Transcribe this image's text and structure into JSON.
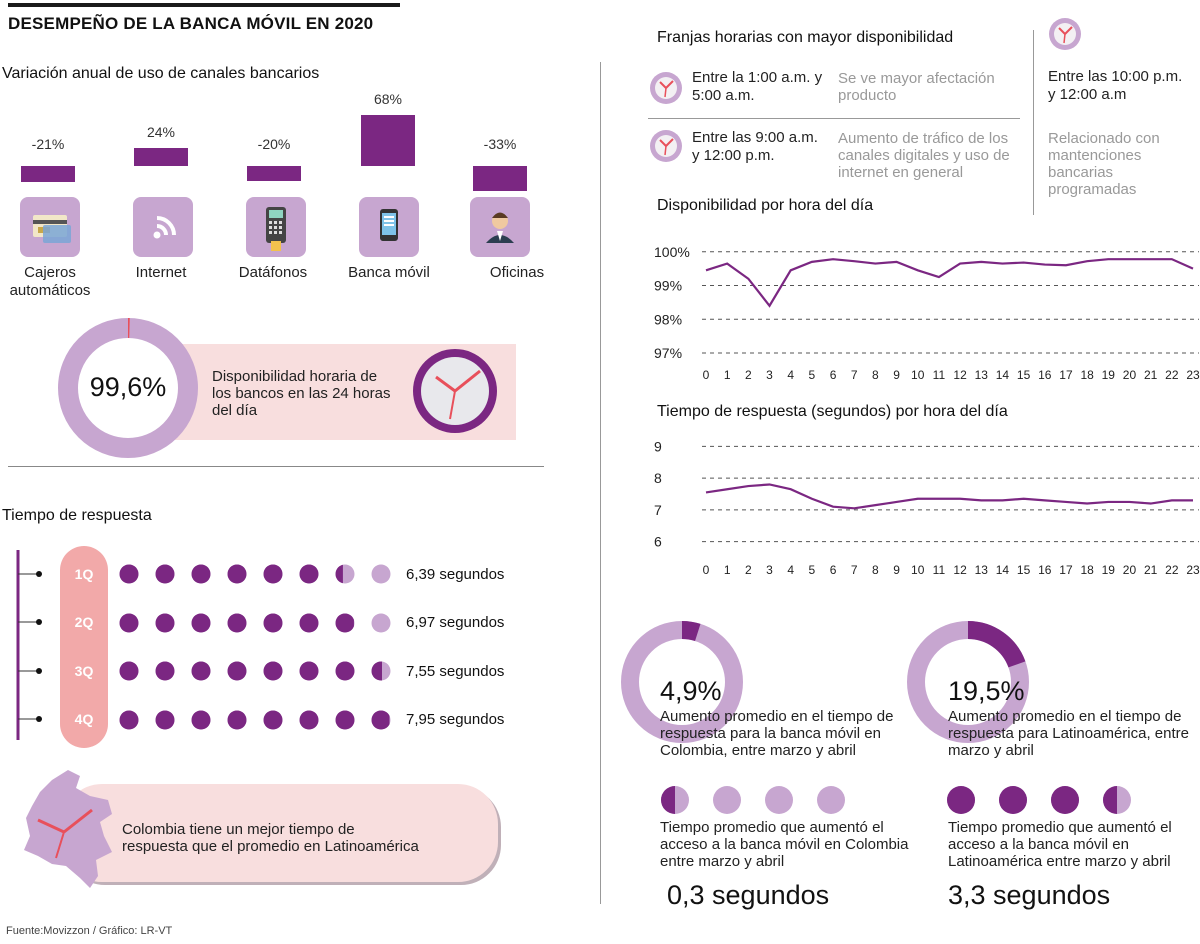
{
  "title": "DESEMPEÑO DE LA BANCA MÓVIL EN 2020",
  "colors": {
    "purple": "#7b2782",
    "lilac": "#c7a6d0",
    "pink": "#f8dede",
    "salmon": "#f2a9a9",
    "red": "#e8505b"
  },
  "channels": {
    "heading": "Variación anual de uso de canales bancarios",
    "items": [
      {
        "label": "Cajeros automáticos",
        "change": "-21%",
        "value": -21,
        "icon": "atm-card-icon"
      },
      {
        "label": "Internet",
        "change": "24%",
        "value": 24,
        "icon": "wifi-icon"
      },
      {
        "label": "Datáfonos",
        "change": "-20%",
        "value": -20,
        "icon": "card-terminal-icon"
      },
      {
        "label": "Banca móvil",
        "change": "68%",
        "value": 68,
        "icon": "mobile-phone-icon"
      },
      {
        "label": "Oficinas",
        "change": "-33%",
        "value": -33,
        "icon": "bank-officer-icon"
      }
    ]
  },
  "availability": {
    "value": "99,6%",
    "fraction": 0.996,
    "text": "Disponibilidad horaria de los bancos en las 24 horas del día"
  },
  "response": {
    "heading": "Tiempo de respuesta",
    "quarters": [
      {
        "q": "1Q",
        "seconds": "6,39 segundos",
        "value": 6.39
      },
      {
        "q": "2Q",
        "seconds": "6,97 segundos",
        "value": 6.97
      },
      {
        "q": "3Q",
        "seconds": "7,55 segundos",
        "value": 7.55
      },
      {
        "q": "4Q",
        "seconds": "7,95 segundos",
        "value": 7.95
      }
    ]
  },
  "colombia": {
    "text": "Colombia tiene un mejor tiempo de respuesta que el promedio en Latinoamérica"
  },
  "slots": {
    "heading": "Franjas horarias con mayor disponibilidad",
    "rows": [
      {
        "range": "Entre la 1:00 a.m. y 5:00 a.m.",
        "note": "Se ve mayor afectación producto"
      },
      {
        "range": "Entre las 9:00 a.m. y 12:00 p.m.",
        "note": "Aumento de tráfico de los canales digitales y uso de internet en general"
      }
    ],
    "side": {
      "range": "Entre las 10:00 p.m. y 12:00 a.m",
      "note": "Relacionado con mantenciones bancarias programadas"
    }
  },
  "chart_data": [
    {
      "type": "line",
      "title": "Disponibilidad por hora del día",
      "x": [
        0,
        1,
        2,
        3,
        4,
        5,
        6,
        7,
        8,
        9,
        10,
        11,
        12,
        13,
        14,
        15,
        16,
        17,
        18,
        19,
        20,
        21,
        22,
        23
      ],
      "y": [
        99.45,
        99.65,
        99.2,
        98.4,
        99.45,
        99.7,
        99.78,
        99.72,
        99.65,
        99.7,
        99.45,
        99.25,
        99.65,
        99.7,
        99.65,
        99.68,
        99.62,
        99.6,
        99.72,
        99.78,
        99.78,
        99.78,
        99.78,
        99.5
      ],
      "ylim": [
        97,
        100.2
      ],
      "yticks": [
        "97%",
        "98%",
        "99%",
        "100%"
      ],
      "ytick_values": [
        97,
        98,
        99,
        100
      ],
      "grid": true
    },
    {
      "type": "line",
      "title": "Tiempo de respuesta (segundos) por hora del día",
      "x": [
        0,
        1,
        2,
        3,
        4,
        5,
        6,
        7,
        8,
        9,
        10,
        11,
        12,
        13,
        14,
        15,
        16,
        17,
        18,
        19,
        20,
        21,
        22,
        23
      ],
      "y": [
        7.55,
        7.65,
        7.75,
        7.8,
        7.65,
        7.35,
        7.1,
        7.05,
        7.15,
        7.25,
        7.35,
        7.35,
        7.35,
        7.3,
        7.3,
        7.35,
        7.3,
        7.25,
        7.2,
        7.25,
        7.25,
        7.2,
        7.3,
        7.3
      ],
      "ylim": [
        5.8,
        9.2
      ],
      "yticks": [
        "6",
        "7",
        "8",
        "9"
      ],
      "ytick_values": [
        6,
        7,
        8,
        9
      ],
      "grid": true
    }
  ],
  "increase": [
    {
      "value": "4,9%",
      "fraction": 0.049,
      "desc": "Aumento promedio en el tiempo de respuesta para la banca móvil en Colombia, entre marzo y abril",
      "time_desc": "Tiempo promedio que aumentó el acceso a la banca móvil en Colombia entre marzo y abril",
      "time": "0,3 segundos",
      "time_value": 0.3
    },
    {
      "value": "19,5%",
      "fraction": 0.195,
      "desc": "Aumento promedio en el tiempo de respuesta para Latinoamérica, entre marzo y abril",
      "time_desc": "Tiempo promedio que aumentó el acceso a la banca móvil en Latinoamérica entre marzo y abril",
      "time": "3,3 segundos",
      "time_value": 3.3
    }
  ],
  "source": "Fuente:Movizzon / Gráfico: LR-VT"
}
